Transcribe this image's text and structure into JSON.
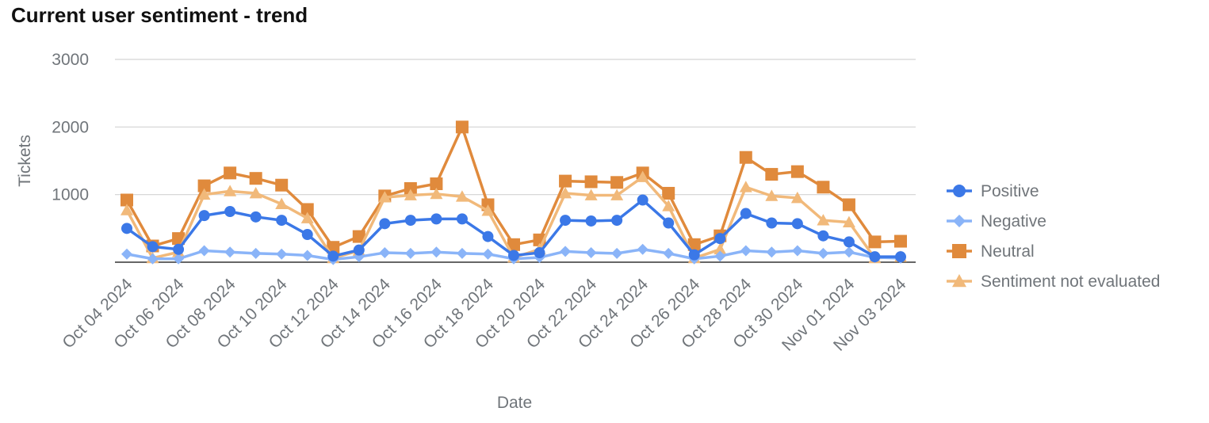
{
  "title": "Current user sentiment - trend",
  "chart_data": {
    "type": "line",
    "title": "Current user sentiment - trend",
    "xlabel": "Date",
    "ylabel": "Tickets",
    "ylim": [
      0,
      3000
    ],
    "yticks": [
      1000,
      2000,
      3000
    ],
    "grid": true,
    "legend_position": "right",
    "x": [
      "Oct 04 2024",
      "Oct 05 2024",
      "Oct 06 2024",
      "Oct 07 2024",
      "Oct 08 2024",
      "Oct 09 2024",
      "Oct 10 2024",
      "Oct 11 2024",
      "Oct 12 2024",
      "Oct 13 2024",
      "Oct 14 2024",
      "Oct 15 2024",
      "Oct 16 2024",
      "Oct 17 2024",
      "Oct 18 2024",
      "Oct 19 2024",
      "Oct 20 2024",
      "Oct 21 2024",
      "Oct 22 2024",
      "Oct 23 2024",
      "Oct 24 2024",
      "Oct 25 2024",
      "Oct 26 2024",
      "Oct 27 2024",
      "Oct 28 2024",
      "Oct 29 2024",
      "Oct 30 2024",
      "Oct 31 2024",
      "Nov 01 2024",
      "Nov 02 2024",
      "Nov 03 2024"
    ],
    "xtick_labels": [
      "Oct 04 2024",
      "Oct 06 2024",
      "Oct 08 2024",
      "Oct 10 2024",
      "Oct 12 2024",
      "Oct 14 2024",
      "Oct 16 2024",
      "Oct 18 2024",
      "Oct 20 2024",
      "Oct 22 2024",
      "Oct 24 2024",
      "Oct 26 2024",
      "Oct 28 2024",
      "Oct 30 2024",
      "Nov 01 2024",
      "Nov 03 2024"
    ],
    "series": [
      {
        "name": " Positive",
        "color": "#3b78e7",
        "marker": "circle",
        "values": [
          500,
          230,
          190,
          690,
          750,
          670,
          620,
          410,
          90,
          180,
          570,
          620,
          640,
          640,
          380,
          100,
          140,
          620,
          610,
          620,
          920,
          580,
          110,
          350,
          720,
          580,
          570,
          390,
          300,
          80,
          80
        ]
      },
      {
        "name": "Negative",
        "color": "#8ab4f8",
        "marker": "diamond",
        "values": [
          120,
          50,
          50,
          170,
          150,
          130,
          120,
          100,
          40,
          80,
          140,
          130,
          150,
          130,
          120,
          50,
          70,
          160,
          140,
          130,
          190,
          130,
          50,
          90,
          170,
          150,
          170,
          130,
          150,
          70,
          60
        ]
      },
      {
        "name": "Neutral",
        "color": "#e08a3c",
        "marker": "square",
        "values": [
          920,
          240,
          350,
          1130,
          1320,
          1240,
          1140,
          780,
          220,
          380,
          980,
          1090,
          1160,
          2000,
          850,
          260,
          330,
          1200,
          1190,
          1180,
          1320,
          1020,
          260,
          390,
          1550,
          1300,
          1340,
          1110,
          850,
          300,
          310
        ]
      },
      {
        "name": "Sentiment not evaluated",
        "color": "#f1b97a",
        "marker": "triangle",
        "values": [
          770,
          60,
          150,
          1000,
          1050,
          1020,
          860,
          650,
          60,
          170,
          960,
          990,
          1010,
          970,
          760,
          70,
          190,
          1020,
          990,
          990,
          1260,
          830,
          60,
          190,
          1110,
          980,
          950,
          620,
          590,
          60,
          80
        ]
      }
    ]
  }
}
